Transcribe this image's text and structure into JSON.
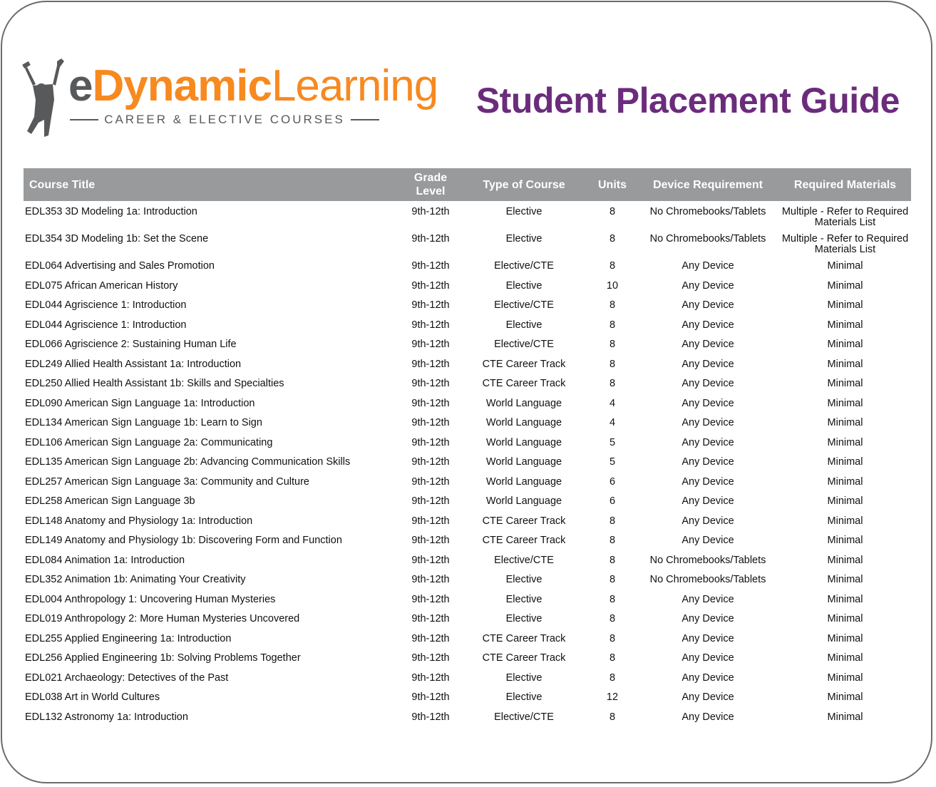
{
  "logo": {
    "e": "e",
    "dynamic": "Dynamic",
    "learning": "Learning",
    "tagline": "CAREER & ELECTIVE COURSES",
    "colors": {
      "gray": "#58595b",
      "orange": "#f7891f"
    }
  },
  "title": "Student Placement Guide",
  "title_color": "#6b2c7c",
  "header_color": "#999a9b",
  "columns": [
    "Course Title",
    "Grade Level",
    "Type of Course",
    "Units",
    "Device Requirement",
    "Required Materials"
  ],
  "rows": [
    [
      "EDL353 3D Modeling 1a: Introduction",
      "9th-12th",
      "Elective",
      "8",
      "No Chromebooks/Tablets",
      "Multiple - Refer to Required Materials List"
    ],
    [
      "EDL354 3D Modeling 1b: Set the Scene",
      "9th-12th",
      "Elective",
      "8",
      "No Chromebooks/Tablets",
      "Multiple - Refer to Required Materials List"
    ],
    [
      "EDL064 Advertising and Sales Promotion",
      "9th-12th",
      "Elective/CTE",
      "8",
      "Any Device",
      "Minimal"
    ],
    [
      "EDL075 African American History",
      "9th-12th",
      "Elective",
      "10",
      "Any Device",
      "Minimal"
    ],
    [
      "EDL044 Agriscience 1: Introduction",
      "9th-12th",
      "Elective/CTE",
      "8",
      "Any Device",
      "Minimal"
    ],
    [
      "EDL044 Agriscience 1: Introduction",
      "9th-12th",
      "Elective",
      "8",
      "Any Device",
      "Minimal"
    ],
    [
      "EDL066 Agriscience 2: Sustaining Human Life",
      "9th-12th",
      "Elective/CTE",
      "8",
      "Any Device",
      "Minimal"
    ],
    [
      "EDL249 Allied Health Assistant 1a: Introduction",
      "9th-12th",
      "CTE Career Track",
      "8",
      "Any Device",
      "Minimal"
    ],
    [
      "EDL250 Allied Health Assistant 1b: Skills and Specialties",
      "9th-12th",
      "CTE Career Track",
      "8",
      "Any Device",
      "Minimal"
    ],
    [
      "EDL090 American Sign Language 1a: Introduction",
      "9th-12th",
      "World Language",
      "4",
      "Any Device",
      "Minimal"
    ],
    [
      "EDL134 American Sign Language 1b: Learn to Sign",
      "9th-12th",
      "World Language",
      "4",
      "Any Device",
      "Minimal"
    ],
    [
      "EDL106 American Sign Language 2a: Communicating",
      "9th-12th",
      "World Language",
      "5",
      "Any Device",
      "Minimal"
    ],
    [
      "EDL135 American Sign Language 2b: Advancing Communication Skills",
      "9th-12th",
      "World Language",
      "5",
      "Any Device",
      "Minimal"
    ],
    [
      "EDL257 American Sign Language 3a: Community and Culture",
      "9th-12th",
      "World Language",
      "6",
      "Any Device",
      "Minimal"
    ],
    [
      "EDL258 American Sign Language 3b",
      "9th-12th",
      "World Language",
      "6",
      "Any Device",
      "Minimal"
    ],
    [
      "EDL148 Anatomy and Physiology 1a: Introduction",
      "9th-12th",
      "CTE Career Track",
      "8",
      "Any Device",
      "Minimal"
    ],
    [
      "EDL149 Anatomy and Physiology 1b: Discovering Form and Function",
      "9th-12th",
      "CTE Career Track",
      "8",
      "Any Device",
      "Minimal"
    ],
    [
      "EDL084 Animation 1a: Introduction",
      "9th-12th",
      "Elective/CTE",
      "8",
      "No Chromebooks/Tablets",
      "Minimal"
    ],
    [
      "EDL352 Animation 1b: Animating Your Creativity",
      "9th-12th",
      "Elective",
      "8",
      "No Chromebooks/Tablets",
      "Minimal"
    ],
    [
      "EDL004 Anthropology 1: Uncovering Human Mysteries",
      "9th-12th",
      "Elective",
      "8",
      "Any Device",
      "Minimal"
    ],
    [
      "EDL019 Anthropology 2: More Human Mysteries Uncovered",
      "9th-12th",
      "Elective",
      "8",
      "Any Device",
      "Minimal"
    ],
    [
      "EDL255 Applied Engineering 1a: Introduction",
      "9th-12th",
      "CTE Career Track",
      "8",
      "Any Device",
      "Minimal"
    ],
    [
      "EDL256 Applied Engineering 1b: Solving Problems Together",
      "9th-12th",
      "CTE Career Track",
      "8",
      "Any Device",
      "Minimal"
    ],
    [
      "EDL021 Archaeology: Detectives of the Past",
      "9th-12th",
      "Elective",
      "8",
      "Any Device",
      "Minimal"
    ],
    [
      "EDL038 Art in World Cultures",
      "9th-12th",
      "Elective",
      "12",
      "Any Device",
      "Minimal"
    ],
    [
      "EDL132 Astronomy 1a: Introduction",
      "9th-12th",
      "Elective/CTE",
      "8",
      "Any Device",
      "Minimal"
    ]
  ]
}
